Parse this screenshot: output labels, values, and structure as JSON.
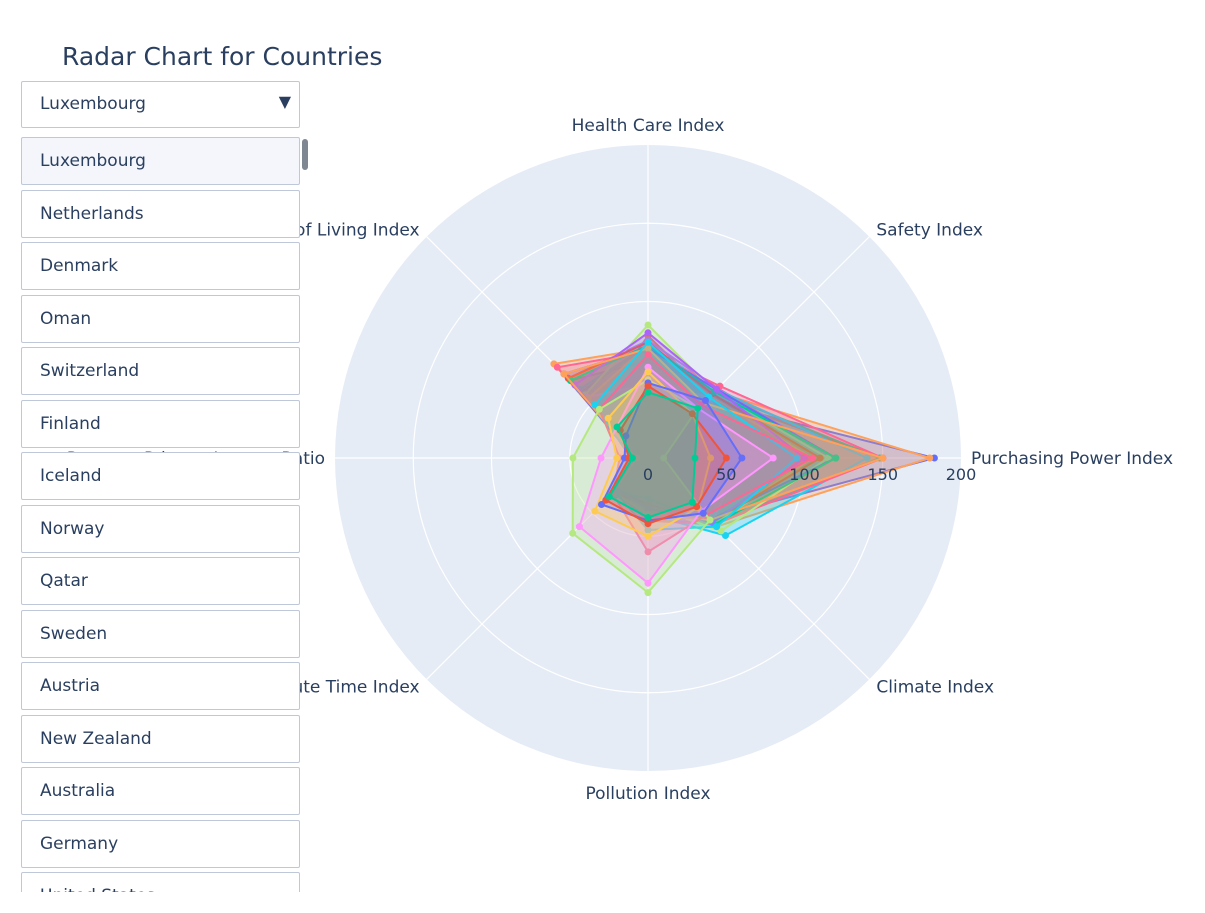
{
  "title": "Radar Chart for Countries",
  "dropdown": {
    "selected": "Luxembourg",
    "arrow": "▼",
    "options": [
      "Luxembourg",
      "Netherlands",
      "Denmark",
      "Oman",
      "Switzerland",
      "Finland",
      "Iceland",
      "Norway",
      "Qatar",
      "Sweden",
      "Austria",
      "New Zealand",
      "Australia",
      "Germany",
      "United States"
    ]
  },
  "chart_data": {
    "type": "radar",
    "title": "Radar Chart for Countries",
    "categories": [
      "Purchasing Power Index",
      "Safety Index",
      "Health Care Index",
      "Cost of Living Index",
      "Property Price to Income Ratio",
      "Traffic Commute Time Index",
      "Pollution Index",
      "Climate Index"
    ],
    "radial_range": [
      0,
      200
    ],
    "radial_ticks": [
      "0",
      "50",
      "100",
      "150",
      "200"
    ],
    "grid": true,
    "series": [
      {
        "values": [
          183,
          52,
          62,
          70,
          8,
          35,
          25,
          55
        ],
        "color": "#636efa"
      },
      {
        "values": [
          150,
          56,
          78,
          46,
          8,
          30,
          28,
          59
        ],
        "color": "#ef553b"
      },
      {
        "values": [
          148,
          60,
          72,
          60,
          7,
          33,
          28,
          60
        ],
        "color": "#00cc96"
      },
      {
        "values": [
          120,
          63,
          75,
          72,
          9,
          28,
          40,
          58
        ],
        "color": "#ab63fa"
      },
      {
        "values": [
          180,
          60,
          70,
          85,
          8,
          31,
          34,
          62
        ],
        "color": "#ffa15a"
      },
      {
        "values": [
          140,
          62,
          72,
          62,
          8,
          32,
          36,
          70
        ],
        "color": "#19d3f3"
      },
      {
        "values": [
          150,
          65,
          68,
          82,
          7,
          30,
          40,
          60
        ],
        "color": "#ff6692"
      },
      {
        "values": [
          115,
          60,
          85,
          57,
          10,
          28,
          30,
          66
        ],
        "color": "#b6e880"
      },
      {
        "values": [
          60,
          55,
          47,
          55,
          8,
          20,
          30,
          58
        ],
        "color": "#ff97ff"
      },
      {
        "values": [
          105,
          56,
          72,
          54,
          7,
          30,
          25,
          60
        ],
        "color": "#fecb52"
      },
      {
        "values": [
          120,
          62,
          70,
          76,
          9,
          28,
          30,
          56
        ],
        "color": "#636efa"
      },
      {
        "values": [
          110,
          58,
          74,
          72,
          8,
          32,
          30,
          58
        ],
        "color": "#ef553b"
      },
      {
        "values": [
          120,
          60,
          72,
          70,
          8,
          30,
          26,
          60
        ],
        "color": "#00cc96"
      },
      {
        "values": [
          100,
          62,
          80,
          66,
          9,
          29,
          32,
          58
        ],
        "color": "#ab63fa"
      },
      {
        "values": [
          150,
          50,
          70,
          76,
          7,
          31,
          36,
          56
        ],
        "color": "#ffa15a"
      },
      {
        "values": [
          95,
          55,
          74,
          48,
          11,
          30,
          46,
          62
        ],
        "color": "#19d3f3"
      },
      {
        "values": [
          105,
          48,
          66,
          44,
          18,
          32,
          60,
          52
        ],
        "color": "#ff6692"
      },
      {
        "values": [
          10,
          45,
          50,
          44,
          48,
          68,
          86,
          56
        ],
        "color": "#b6e880"
      },
      {
        "values": [
          80,
          45,
          58,
          28,
          30,
          62,
          80,
          48
        ],
        "color": "#ff97ff"
      },
      {
        "values": [
          40,
          40,
          55,
          36,
          20,
          48,
          50,
          45
        ],
        "color": "#fecb52"
      },
      {
        "values": [
          60,
          52,
          48,
          20,
          15,
          42,
          40,
          50
        ],
        "color": "#636efa"
      },
      {
        "values": [
          50,
          40,
          46,
          25,
          12,
          38,
          42,
          44
        ],
        "color": "#ef553b"
      },
      {
        "values": [
          30,
          45,
          42,
          28,
          10,
          35,
          38,
          40
        ],
        "color": "#00cc96"
      }
    ]
  }
}
